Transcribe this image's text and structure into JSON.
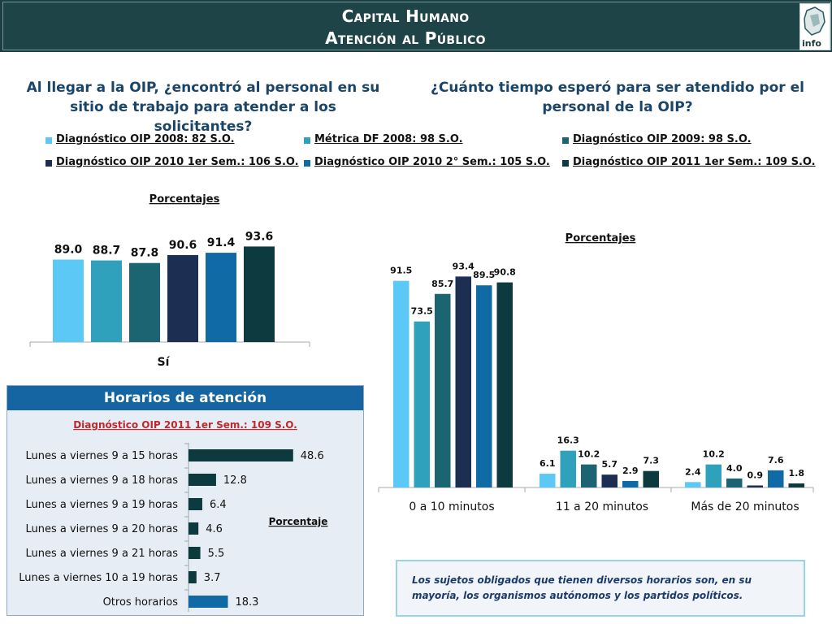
{
  "header": {
    "title_line1": "Capital Humano",
    "title_line2": "Atención al Público",
    "logo_text": "info"
  },
  "questions": {
    "q1": "Al llegar a la OIP, ¿encontró al personal en su sitio de trabajo para atender a los solicitantes?",
    "q2": "¿Cuánto tiempo esperó para ser atendido por el personal de la OIP?"
  },
  "legend": [
    {
      "label": "Diagnóstico OIP 2008: 82 S.O.",
      "color": "#5bc8f5"
    },
    {
      "label": "Métrica DF 2008: 98 S.O.",
      "color": "#2fa1bd"
    },
    {
      "label": "Diagnóstico OIP 2009: 98 S.O.",
      "color": "#1d6472"
    },
    {
      "label": "Diagnóstico OIP 2010 1er Sem.: 106 S.O.",
      "color": "#1c2f52"
    },
    {
      "label": "Diagnóstico OIP 2010 2° Sem.: 105 S.O.",
      "color": "#0f6aa5"
    },
    {
      "label": "Diagnóstico OIP 2011 1er Sem.: 109 S.O.",
      "color": "#0c3a3e"
    }
  ],
  "panel": {
    "title": "Horarios de atención",
    "subtitle": "Diagnóstico OIP 2011 1er Sem.: 109 S.O."
  },
  "note": "Los sujetos obligados que tienen diversos horarios son, en su mayoría, los organismos autónomos y los partidos políticos.",
  "chart_data": [
    {
      "type": "bar",
      "title": "Porcentajes",
      "categories": [
        "Sí"
      ],
      "series": [
        {
          "name": "Diagnóstico OIP 2008: 82 S.O.",
          "values": [
            89.0
          ],
          "labels": [
            "89.0"
          ]
        },
        {
          "name": "Métrica DF 2008: 98 S.O.",
          "values": [
            88.7
          ],
          "labels": [
            "88.7"
          ]
        },
        {
          "name": "Diagnóstico OIP 2009: 98 S.O.",
          "values": [
            87.8
          ],
          "labels": [
            "87.8"
          ]
        },
        {
          "name": "Diagnóstico OIP 2010 1er Sem.: 106 S.O.",
          "values": [
            90.6
          ],
          "labels": [
            "90.6"
          ]
        },
        {
          "name": "Diagnóstico OIP 2010 2° Sem.: 105 S.O.",
          "values": [
            91.4
          ],
          "labels": [
            "91.4"
          ]
        },
        {
          "name": "Diagnóstico OIP 2011 1er Sem.: 109 S.O.",
          "values": [
            93.6
          ],
          "labels": [
            "93.6"
          ]
        }
      ],
      "ylim": [
        0,
        100
      ],
      "grid": false
    },
    {
      "type": "bar",
      "title": "Porcentajes",
      "categories": [
        "0 a 10 minutos",
        "11 a 20 minutos",
        "Más de 20 minutos"
      ],
      "series": [
        {
          "name": "Diagnóstico OIP 2008: 82 S.O.",
          "values": [
            91.5,
            6.1,
            2.4
          ],
          "labels": [
            "91.5",
            "6.1",
            "2.4"
          ]
        },
        {
          "name": "Métrica DF 2008: 98 S.O.",
          "values": [
            73.5,
            16.3,
            10.2
          ],
          "labels": [
            "73.5",
            "16.3",
            "10.2"
          ]
        },
        {
          "name": "Diagnóstico OIP 2009: 98 S.O.",
          "values": [
            85.7,
            10.2,
            4.0
          ],
          "labels": [
            "85.7",
            "10.2",
            "4.0"
          ]
        },
        {
          "name": "Diagnóstico OIP 2010 1er Sem.: 106 S.O.",
          "values": [
            93.4,
            5.7,
            0.9
          ],
          "labels": [
            "93.4",
            "5.7",
            "0.9"
          ]
        },
        {
          "name": "Diagnóstico OIP 2010 2° Sem.: 105 S.O.",
          "values": [
            89.5,
            2.9,
            7.6
          ],
          "labels": [
            "89.5",
            "2.9",
            "7.6"
          ]
        },
        {
          "name": "Diagnóstico OIP 2011 1er Sem.: 109 S.O.",
          "values": [
            90.8,
            7.3,
            1.8
          ],
          "labels": [
            "90.8",
            "7.3",
            "1.8"
          ]
        }
      ],
      "ylim": [
        0,
        100
      ],
      "grid": false
    },
    {
      "type": "bar",
      "orientation": "horizontal",
      "xlabel": "Porcentaje",
      "categories": [
        "Lunes a viernes 9 a 15 horas",
        "Lunes a viernes 9 a 18 horas",
        "Lunes a viernes 9 a 19 horas",
        "Lunes a viernes 9 a 20 horas",
        "Lunes a viernes 9 a 21 horas",
        "Lunes a viernes 10 a 19 horas",
        "Otros horarios"
      ],
      "values": [
        48.6,
        12.8,
        6.4,
        4.6,
        5.5,
        3.7,
        18.3
      ],
      "labels": [
        "48.6",
        "12.8",
        "6.4",
        "4.6",
        "5.5",
        "3.7",
        "18.3"
      ],
      "colors": [
        "#0c3a3e",
        "#0c3a3e",
        "#0c3a3e",
        "#0c3a3e",
        "#0c3a3e",
        "#0c3a3e",
        "#0f6aa5"
      ],
      "xlim": [
        0,
        60
      ]
    }
  ]
}
